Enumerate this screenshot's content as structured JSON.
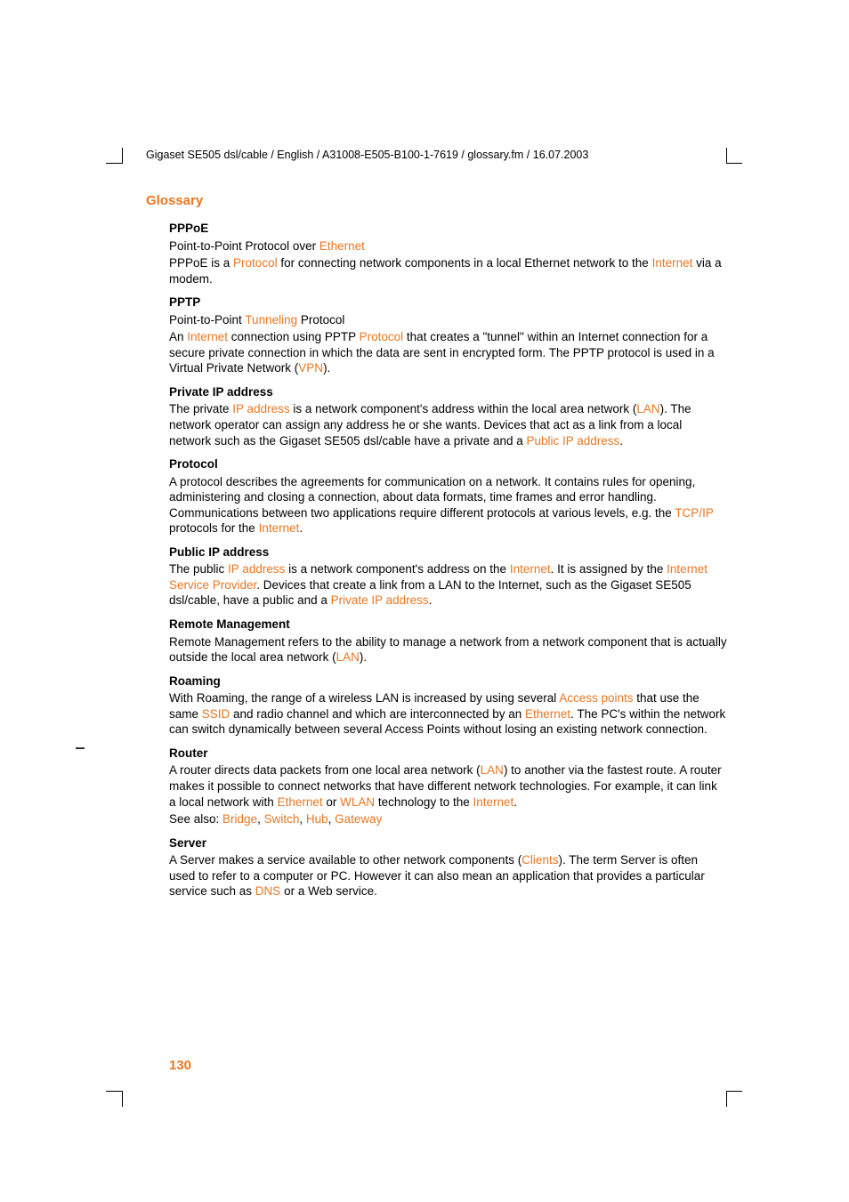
{
  "header_path": "Gigaset SE505 dsl/cable / English / A31008-E505-B100-1-7619 / glossary.fm / 16.07.2003",
  "section_title": "Glossary",
  "page_number": "130",
  "link_color": "#e87722",
  "text_color": "#000000",
  "background": "#ffffff",
  "entries": {
    "pppoe": {
      "term": "PPPoE",
      "l1a": "Point-to-Point Protocol over ",
      "l1b": "Ethernet",
      "l2a": "PPPoE is a ",
      "l2b": "Protocol",
      "l2c": " for connecting network components in a local Ethernet network to the ",
      "l2d": "Internet",
      "l2e": " via a modem."
    },
    "pptp": {
      "term": "PPTP",
      "l1a": "Point-to-Point ",
      "l1b": "Tunneling",
      "l1c": " Protocol",
      "l2a": "An ",
      "l2b": "Internet",
      "l2c": " connection using PPTP ",
      "l2d": "Protocol",
      "l2e": " that creates a \"tunnel\" within an Internet connection for a secure private connection in which the data are sent in encrypted form. The PPTP protocol is used in a Virtual Private Network (",
      "l2f": "VPN",
      "l2g": ")."
    },
    "privip": {
      "term": "Private IP address",
      "l1a": "The private ",
      "l1b": "IP address",
      "l1c": " is a network component's address within the local area network (",
      "l1d": "LAN",
      "l1e": "). The network operator can assign any address he or she wants. Devices that act as a link from a local network such as the Gigaset SE505 dsl/cable have a private and a ",
      "l1f": "Public IP address",
      "l1g": "."
    },
    "protocol": {
      "term": "Protocol",
      "l1a": "A protocol describes the agreements for communication on a network. It contains rules for opening, administering and closing a connection, about data formats, time frames and error handling. Communications between two applications require different protocols at various levels, e.g. the ",
      "l1b": "TCP/IP",
      "l1c": " protocols for the ",
      "l1d": "Internet",
      "l1e": "."
    },
    "pubip": {
      "term": "Public IP address",
      "l1a": "The public ",
      "l1b": "IP address",
      "l1c": " is a network component's address on the ",
      "l1d": "Internet",
      "l1e": ". It is assigned by the ",
      "l1f": "Internet Service Provider",
      "l1g": ". Devices that create a link from a LAN to the Internet, such as the Gigaset SE505 dsl/cable, have a public and a ",
      "l1h": "Private IP address",
      "l1i": "."
    },
    "remote": {
      "term": "Remote Management",
      "l1a": "Remote Management refers to the ability to manage a network from a network component that is actually outside the local area network (",
      "l1b": "LAN",
      "l1c": ")."
    },
    "roaming": {
      "term": "Roaming",
      "l1a": "With Roaming, the range of a wireless LAN is increased by using several ",
      "l1b": "Access points",
      "l1c": " that use the same ",
      "l1d": "SSID",
      "l1e": " and radio channel and which are interconnected by an ",
      "l1f": "Ethernet",
      "l1g": ". The PC's within the network can switch dynamically between several Access Points without losing an existing network connection."
    },
    "router": {
      "term": "Router",
      "l1a": "A router directs data packets from one local area network (",
      "l1b": "LAN",
      "l1c": ") to another via the fastest route. A router makes it possible to connect networks that have different network technologies. For example, it can link a local network with ",
      "l1d": "Ethernet",
      "l1e": " or ",
      "l1f": "WLAN",
      "l1g": " technology to the ",
      "l1h": "Internet",
      "l1i": ".",
      "l2a": "See also: ",
      "l2b": "Bridge",
      "l2c": ", ",
      "l2d": "Switch",
      "l2e": ", ",
      "l2f": "Hub",
      "l2g": ", ",
      "l2h": "Gateway"
    },
    "server": {
      "term": "Server",
      "l1a": "A Server makes a service available to other network components (",
      "l1b": "Clients",
      "l1c": "). The term Server is often used to refer to a computer or PC. However it can also mean an application that provides a particular service such as ",
      "l1d": "DNS",
      "l1e": " or a Web service."
    }
  }
}
